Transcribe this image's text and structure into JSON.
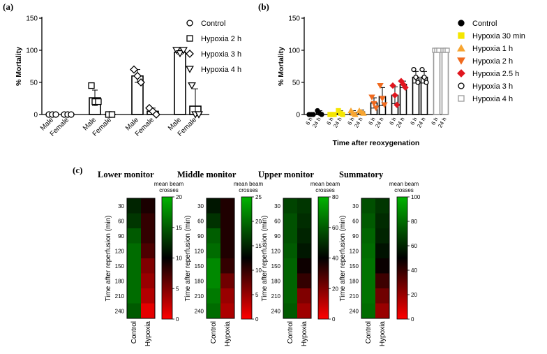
{
  "panels": {
    "a": "(a)",
    "b": "(b)",
    "c": "(c)"
  },
  "chart_data": [
    {
      "type": "bar",
      "panel": "a",
      "ylabel": "% Mortality",
      "ylim": [
        0,
        150
      ],
      "yticks": [
        0,
        50,
        100,
        150
      ],
      "categories": [
        "Male",
        "Female",
        "Male",
        "Female",
        "Male",
        "Female",
        "Male",
        "Female"
      ],
      "groups": [
        {
          "series": "Control",
          "marker": "circle",
          "bars": [
            {
              "label": "Male",
              "mean": 0,
              "sd": 0,
              "points": [
                0,
                0,
                0
              ]
            },
            {
              "label": "Female",
              "mean": 0,
              "sd": 0,
              "points": [
                0,
                0,
                0
              ]
            }
          ]
        },
        {
          "series": "Hypoxia 2 h",
          "marker": "square",
          "bars": [
            {
              "label": "Male",
              "mean": 26,
              "sd": 12,
              "points": [
                45,
                20,
                20
              ]
            },
            {
              "label": "Female",
              "mean": 0,
              "sd": 0,
              "points": [
                0,
                0
              ]
            }
          ]
        },
        {
          "series": "Hypoxia 3 h",
          "marker": "diamond",
          "bars": [
            {
              "label": "Male",
              "mean": 60,
              "sd": 10,
              "points": [
                70,
                60,
                50
              ]
            },
            {
              "label": "Female",
              "mean": 5,
              "sd": 5,
              "points": [
                10,
                5,
                0
              ]
            }
          ]
        },
        {
          "series": "Hypoxia 4 h",
          "marker": "triangle-down",
          "bars": [
            {
              "label": "Male",
              "mean": 97,
              "sd": 3,
              "points": [
                100,
                95,
                100
              ]
            },
            {
              "label": "Female",
              "mean": 13,
              "sd": 27,
              "points": [
                45,
                0,
                0
              ]
            }
          ]
        }
      ],
      "legend": [
        {
          "name": "Control",
          "marker": "circle"
        },
        {
          "name": "Hypoxia 2 h",
          "marker": "square"
        },
        {
          "name": "Hypoxia 3 h",
          "marker": "diamond"
        },
        {
          "name": "Hypoxia 4 h",
          "marker": "triangle-down"
        }
      ],
      "legend_position": "right"
    },
    {
      "type": "bar",
      "panel": "b",
      "ylabel": "% Mortality",
      "xlabel": "Time after reoxygenation",
      "ylim": [
        0,
        150
      ],
      "yticks": [
        0,
        50,
        100,
        150
      ],
      "categories": [
        "6 h",
        "24 h",
        "6 h",
        "24 h",
        "6 h",
        "24 h",
        "6 h",
        "24 h",
        "6 h",
        "24 h",
        "6 h",
        "24 h",
        "6 h",
        "24 h"
      ],
      "groups": [
        {
          "series": "Control",
          "marker": "circle-filled",
          "color": "#000000",
          "bars": [
            {
              "label": "6 h",
              "mean": 0,
              "sd": 0,
              "points": [
                0,
                0,
                0
              ]
            },
            {
              "label": "24 h",
              "mean": 3,
              "sd": 3,
              "points": [
                6,
                2,
                0
              ]
            }
          ]
        },
        {
          "series": "Hypoxia 30 min",
          "marker": "square-filled",
          "color": "#f5e600",
          "bars": [
            {
              "label": "6 h",
              "mean": 0,
              "sd": 0,
              "points": [
                0,
                0,
                0
              ]
            },
            {
              "label": "24 h",
              "mean": 3,
              "sd": 3,
              "points": [
                6,
                2,
                0
              ]
            }
          ]
        },
        {
          "series": "Hypoxia 1 h",
          "marker": "triangle-up-filled",
          "color": "#f7a531",
          "bars": [
            {
              "label": "6 h",
              "mean": 3,
              "sd": 3,
              "points": [
                6,
                2,
                0
              ]
            },
            {
              "label": "24 h",
              "mean": 4,
              "sd": 3,
              "points": [
                6,
                4,
                2
              ]
            }
          ]
        },
        {
          "series": "Hypoxia 2 h",
          "marker": "triangle-down-filled",
          "color": "#f06a1f",
          "bars": [
            {
              "label": "6 h",
              "mean": 18,
              "sd": 8,
              "points": [
                27,
                17,
                10
              ]
            },
            {
              "label": "24 h",
              "mean": 28,
              "sd": 14,
              "points": [
                45,
                25,
                15
              ]
            }
          ]
        },
        {
          "series": "Hypoxia 2.5 h",
          "marker": "diamond-filled",
          "color": "#e0161f",
          "bars": [
            {
              "label": "6 h",
              "mean": 30,
              "sd": 13,
              "points": [
                45,
                30,
                15
              ]
            },
            {
              "label": "24 h",
              "mean": 47,
              "sd": 5,
              "points": [
                52,
                47,
                42
              ]
            }
          ]
        },
        {
          "series": "Hypoxia 3 h",
          "marker": "circle",
          "color": "#000000",
          "bars": [
            {
              "label": "6 h",
              "mean": 58,
              "sd": 9,
              "points": [
                70,
                58,
                50
              ]
            },
            {
              "label": "24 h",
              "mean": 58,
              "sd": 9,
              "points": [
                70,
                58,
                50
              ]
            }
          ]
        },
        {
          "series": "Hypoxia 4 h",
          "marker": "square",
          "color": "#9a9a9a",
          "bars": [
            {
              "label": "6 h",
              "mean": 100,
              "sd": 0,
              "points": [
                100,
                100,
                100
              ]
            },
            {
              "label": "24 h",
              "mean": 100,
              "sd": 0,
              "points": [
                100,
                100,
                100
              ]
            }
          ]
        }
      ],
      "legend": [
        {
          "name": "Control",
          "marker": "circle-filled",
          "color": "#000000"
        },
        {
          "name": "Hypoxia 30 min",
          "marker": "square-filled",
          "color": "#f5e600"
        },
        {
          "name": "Hypoxia 1 h",
          "marker": "triangle-up-filled",
          "color": "#f7a531"
        },
        {
          "name": "Hypoxia 2 h",
          "marker": "triangle-down-filled",
          "color": "#f06a1f"
        },
        {
          "name": "Hypoxia 2.5 h",
          "marker": "diamond-filled",
          "color": "#e0161f"
        },
        {
          "name": "Hypoxia 3 h",
          "marker": "circle",
          "color": "#000000"
        },
        {
          "name": "Hypoxia 4 h",
          "marker": "square",
          "color": "#9a9a9a"
        }
      ],
      "legend_position": "right"
    },
    {
      "type": "heatmap",
      "panel": "c",
      "title": "Lower monitor",
      "ylabel": "Time after reperfusion (min)",
      "yticks": [
        "30",
        "60",
        "90",
        "120",
        "150",
        "180",
        "210",
        "240"
      ],
      "columns": [
        "Control",
        "Hypoxia"
      ],
      "colorbar_label": "mean beam crosses",
      "colorbar_range": [
        0,
        20
      ],
      "colorbar_ticks": [
        "20",
        "15",
        "10",
        "5",
        "0"
      ],
      "values": [
        [
          12,
          9
        ],
        [
          13,
          8
        ],
        [
          15,
          8
        ],
        [
          16,
          7
        ],
        [
          16,
          5
        ],
        [
          16,
          4
        ],
        [
          16,
          3
        ],
        [
          15,
          1
        ]
      ]
    },
    {
      "type": "heatmap",
      "panel": "c",
      "title": "Middle monitor",
      "ylabel": "Time after reperfusion (min)",
      "yticks": [
        "30",
        "60",
        "90",
        "120",
        "150",
        "180",
        "210",
        "240"
      ],
      "columns": [
        "Control",
        "Hypoxia"
      ],
      "colorbar_label": "mean beam crosses",
      "colorbar_range": [
        0,
        25
      ],
      "colorbar_ticks": [
        "25",
        "20",
        "15",
        "10",
        "5",
        "0"
      ],
      "values": [
        [
          14,
          11
        ],
        [
          16,
          11
        ],
        [
          19,
          11
        ],
        [
          20,
          11
        ],
        [
          22,
          10
        ],
        [
          22,
          7
        ],
        [
          21,
          5
        ],
        [
          20,
          4
        ]
      ]
    },
    {
      "type": "heatmap",
      "panel": "c",
      "title": "Upper monitor",
      "ylabel": "Time after reperfusion (min)",
      "yticks": [
        "30",
        "60",
        "90",
        "120",
        "150",
        "180",
        "210",
        "240"
      ],
      "columns": [
        "Control",
        "Hypoxia"
      ],
      "colorbar_label": "mean beam crosses",
      "colorbar_range": [
        0,
        80
      ],
      "colorbar_ticks": [
        "80",
        "60",
        "40",
        "20",
        "0"
      ],
      "values": [
        [
          55,
          52
        ],
        [
          58,
          50
        ],
        [
          58,
          48
        ],
        [
          60,
          45
        ],
        [
          62,
          38
        ],
        [
          62,
          32
        ],
        [
          62,
          20
        ],
        [
          60,
          15
        ]
      ]
    },
    {
      "type": "heatmap",
      "panel": "c",
      "title": "Summatory",
      "ylabel": "Time after reperfusion (min)",
      "yticks": [
        "30",
        "60",
        "90",
        "120",
        "150",
        "180",
        "210",
        "240"
      ],
      "columns": [
        "Control",
        "Hypoxia"
      ],
      "colorbar_label": "mean beam crosses",
      "colorbar_range": [
        0,
        100
      ],
      "colorbar_ticks": [
        "100",
        "80",
        "60",
        "40",
        "20",
        "0"
      ],
      "values": [
        [
          72,
          65
        ],
        [
          75,
          62
        ],
        [
          78,
          60
        ],
        [
          80,
          55
        ],
        [
          82,
          48
        ],
        [
          82,
          38
        ],
        [
          82,
          28
        ],
        [
          80,
          20
        ]
      ]
    }
  ]
}
